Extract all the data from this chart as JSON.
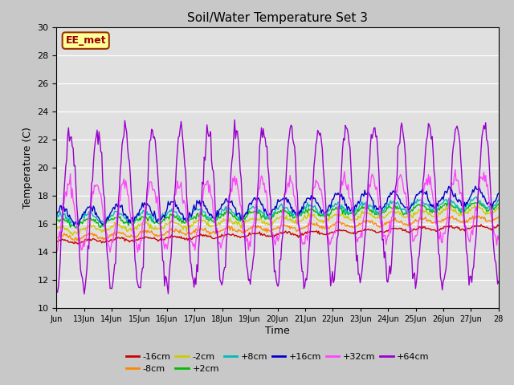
{
  "title": "Soil/Water Temperature Set 3",
  "xlabel": "Time",
  "ylabel": "Temperature (C)",
  "watermark": "EE_met",
  "ylim": [
    10,
    30
  ],
  "bg_color": "#e0e0e0",
  "x_tick_labels": [
    "Jun",
    "13Jun",
    "14Jun",
    "15Jun",
    "16Jun",
    "17Jun",
    "18Jun",
    "19Jun",
    "20Jun",
    "21Jun",
    "22Jun",
    "23Jun",
    "24Jun",
    "25Jun",
    "26Jun",
    "27Jun",
    "28"
  ],
  "series": [
    {
      "label": "-16cm",
      "color": "#cc0000"
    },
    {
      "label": "-8cm",
      "color": "#ff8800"
    },
    {
      "label": "-2cm",
      "color": "#cccc00"
    },
    {
      "label": "+2cm",
      "color": "#00bb00"
    },
    {
      "label": "+8cm",
      "color": "#00bbbb"
    },
    {
      "label": "+16cm",
      "color": "#0000cc"
    },
    {
      "label": "+32cm",
      "color": "#ff44ff"
    },
    {
      "label": "+64cm",
      "color": "#9900cc"
    }
  ]
}
